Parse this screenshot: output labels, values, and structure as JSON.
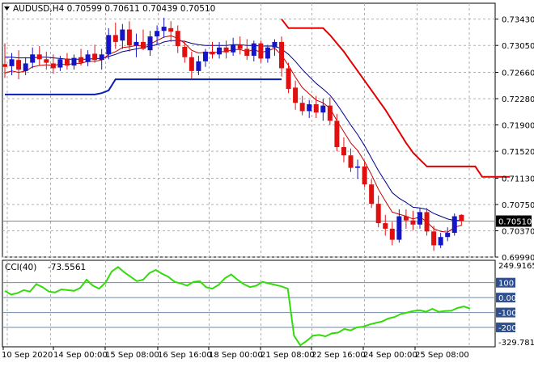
{
  "chart_data": [
    {
      "type": "candlestick",
      "symbol_line": "AUDUSD,H4  0.70599 0.70611 0.70439 0.70510",
      "ylim": [
        0.6999,
        0.7366
      ],
      "price_ticks": [
        "0.73430",
        "0.73050",
        "0.72660",
        "0.72280",
        "0.71900",
        "0.71520",
        "0.71130",
        "0.70750",
        "0.70370",
        "0.69990"
      ],
      "current_price": 0.7051,
      "current_price_label": "0.70510",
      "colors": {
        "bull": "#1515c8",
        "bear": "#e01010",
        "ma_fast": "#c80000",
        "ma_slow": "#00008b",
        "envelope": "#e00000",
        "support": "#0a1eb4",
        "grid": "#b0b0b0",
        "current_line": "#6e8aa6"
      },
      "candles": [
        {
          "o": 0.7278,
          "h": 0.7308,
          "l": 0.7258,
          "c": 0.7274
        },
        {
          "o": 0.7275,
          "h": 0.7294,
          "l": 0.7262,
          "c": 0.7285
        },
        {
          "o": 0.7284,
          "h": 0.7298,
          "l": 0.7256,
          "c": 0.727
        },
        {
          "o": 0.7268,
          "h": 0.7288,
          "l": 0.7262,
          "c": 0.7279
        },
        {
          "o": 0.728,
          "h": 0.7302,
          "l": 0.7272,
          "c": 0.7292
        },
        {
          "o": 0.7292,
          "h": 0.7304,
          "l": 0.7276,
          "c": 0.7285
        },
        {
          "o": 0.7285,
          "h": 0.7296,
          "l": 0.727,
          "c": 0.728
        },
        {
          "o": 0.7279,
          "h": 0.7292,
          "l": 0.7264,
          "c": 0.7272
        },
        {
          "o": 0.7273,
          "h": 0.729,
          "l": 0.7268,
          "c": 0.7285
        },
        {
          "o": 0.7286,
          "h": 0.7294,
          "l": 0.727,
          "c": 0.7276
        },
        {
          "o": 0.7276,
          "h": 0.7292,
          "l": 0.727,
          "c": 0.7287
        },
        {
          "o": 0.7288,
          "h": 0.73,
          "l": 0.7276,
          "c": 0.728
        },
        {
          "o": 0.7281,
          "h": 0.7298,
          "l": 0.7275,
          "c": 0.7292
        },
        {
          "o": 0.7293,
          "h": 0.7306,
          "l": 0.728,
          "c": 0.7284
        },
        {
          "o": 0.7284,
          "h": 0.73,
          "l": 0.727,
          "c": 0.7292
        },
        {
          "o": 0.7292,
          "h": 0.733,
          "l": 0.7285,
          "c": 0.732
        },
        {
          "o": 0.732,
          "h": 0.7338,
          "l": 0.73,
          "c": 0.731
        },
        {
          "o": 0.7312,
          "h": 0.7336,
          "l": 0.73,
          "c": 0.7328
        },
        {
          "o": 0.7328,
          "h": 0.734,
          "l": 0.7296,
          "c": 0.7305
        },
        {
          "o": 0.7305,
          "h": 0.7322,
          "l": 0.7288,
          "c": 0.731
        },
        {
          "o": 0.731,
          "h": 0.7328,
          "l": 0.7298,
          "c": 0.73
        },
        {
          "o": 0.7298,
          "h": 0.7326,
          "l": 0.729,
          "c": 0.7318
        },
        {
          "o": 0.7318,
          "h": 0.7334,
          "l": 0.7306,
          "c": 0.7326
        },
        {
          "o": 0.7326,
          "h": 0.7345,
          "l": 0.7316,
          "c": 0.7332
        },
        {
          "o": 0.733,
          "h": 0.734,
          "l": 0.731,
          "c": 0.7325
        },
        {
          "o": 0.7326,
          "h": 0.7334,
          "l": 0.7294,
          "c": 0.7304
        },
        {
          "o": 0.7303,
          "h": 0.7312,
          "l": 0.728,
          "c": 0.7288
        },
        {
          "o": 0.7288,
          "h": 0.7296,
          "l": 0.7256,
          "c": 0.7268
        },
        {
          "o": 0.7268,
          "h": 0.729,
          "l": 0.7262,
          "c": 0.7282
        },
        {
          "o": 0.7282,
          "h": 0.73,
          "l": 0.7274,
          "c": 0.7296
        },
        {
          "o": 0.7296,
          "h": 0.731,
          "l": 0.7286,
          "c": 0.7292
        },
        {
          "o": 0.7292,
          "h": 0.731,
          "l": 0.7286,
          "c": 0.7302
        },
        {
          "o": 0.7302,
          "h": 0.7312,
          "l": 0.7286,
          "c": 0.7295
        },
        {
          "o": 0.7295,
          "h": 0.7316,
          "l": 0.729,
          "c": 0.7306
        },
        {
          "o": 0.7306,
          "h": 0.7318,
          "l": 0.7292,
          "c": 0.73
        },
        {
          "o": 0.73,
          "h": 0.7314,
          "l": 0.7284,
          "c": 0.729
        },
        {
          "o": 0.729,
          "h": 0.7312,
          "l": 0.7282,
          "c": 0.7308
        },
        {
          "o": 0.7308,
          "h": 0.7312,
          "l": 0.728,
          "c": 0.7286
        },
        {
          "o": 0.7286,
          "h": 0.7306,
          "l": 0.728,
          "c": 0.7302
        },
        {
          "o": 0.7302,
          "h": 0.7314,
          "l": 0.729,
          "c": 0.731
        },
        {
          "o": 0.731,
          "h": 0.7318,
          "l": 0.726,
          "c": 0.7272
        },
        {
          "o": 0.7272,
          "h": 0.728,
          "l": 0.7236,
          "c": 0.7242
        },
        {
          "o": 0.7244,
          "h": 0.7254,
          "l": 0.7212,
          "c": 0.7222
        },
        {
          "o": 0.7222,
          "h": 0.7232,
          "l": 0.7204,
          "c": 0.721
        },
        {
          "o": 0.721,
          "h": 0.7226,
          "l": 0.72,
          "c": 0.722
        },
        {
          "o": 0.722,
          "h": 0.7232,
          "l": 0.72,
          "c": 0.7208
        },
        {
          "o": 0.7208,
          "h": 0.7228,
          "l": 0.7196,
          "c": 0.7218
        },
        {
          "o": 0.7218,
          "h": 0.723,
          "l": 0.719,
          "c": 0.7196
        },
        {
          "o": 0.7196,
          "h": 0.7206,
          "l": 0.7152,
          "c": 0.7158
        },
        {
          "o": 0.7158,
          "h": 0.7172,
          "l": 0.7136,
          "c": 0.7146
        },
        {
          "o": 0.7146,
          "h": 0.7156,
          "l": 0.7122,
          "c": 0.7128
        },
        {
          "o": 0.7128,
          "h": 0.714,
          "l": 0.7112,
          "c": 0.713
        },
        {
          "o": 0.713,
          "h": 0.7138,
          "l": 0.71,
          "c": 0.7104
        },
        {
          "o": 0.7104,
          "h": 0.7112,
          "l": 0.707,
          "c": 0.7076
        },
        {
          "o": 0.7076,
          "h": 0.7088,
          "l": 0.7042,
          "c": 0.7048
        },
        {
          "o": 0.7048,
          "h": 0.706,
          "l": 0.703,
          "c": 0.704
        },
        {
          "o": 0.704,
          "h": 0.705,
          "l": 0.7016,
          "c": 0.7024
        },
        {
          "o": 0.7024,
          "h": 0.7068,
          "l": 0.702,
          "c": 0.7058
        },
        {
          "o": 0.7058,
          "h": 0.7068,
          "l": 0.704,
          "c": 0.7052
        },
        {
          "o": 0.7052,
          "h": 0.7066,
          "l": 0.7038,
          "c": 0.7046
        },
        {
          "o": 0.7046,
          "h": 0.707,
          "l": 0.704,
          "c": 0.7064
        },
        {
          "o": 0.7064,
          "h": 0.707,
          "l": 0.703,
          "c": 0.7036
        },
        {
          "o": 0.7036,
          "h": 0.7044,
          "l": 0.7008,
          "c": 0.7016
        },
        {
          "o": 0.7016,
          "h": 0.7034,
          "l": 0.7012,
          "c": 0.7028
        },
        {
          "o": 0.7028,
          "h": 0.7042,
          "l": 0.7022,
          "c": 0.7034
        },
        {
          "o": 0.7034,
          "h": 0.7062,
          "l": 0.703,
          "c": 0.7058
        },
        {
          "o": 0.706,
          "h": 0.7061,
          "l": 0.7044,
          "c": 0.7051
        }
      ],
      "ma_fast": [
        0.7265,
        0.7268,
        0.7266,
        0.7268,
        0.7274,
        0.7276,
        0.7277,
        0.7276,
        0.7278,
        0.7277,
        0.7279,
        0.7279,
        0.7282,
        0.7282,
        0.7284,
        0.7292,
        0.7296,
        0.7302,
        0.7303,
        0.7305,
        0.7304,
        0.7307,
        0.7312,
        0.7317,
        0.7319,
        0.7315,
        0.7308,
        0.7298,
        0.7294,
        0.7295,
        0.7294,
        0.7296,
        0.7296,
        0.7299,
        0.7299,
        0.7296,
        0.7299,
        0.7295,
        0.7297,
        0.7301,
        0.7291,
        0.7276,
        0.7259,
        0.7244,
        0.7235,
        0.7226,
        0.7222,
        0.7214,
        0.7196,
        0.718,
        0.7164,
        0.7153,
        0.7137,
        0.7118,
        0.7097,
        0.708,
        0.7064,
        0.7061,
        0.7058,
        0.7054,
        0.7057,
        0.705,
        0.704,
        0.7036,
        0.7035,
        0.7042,
        0.7045
      ],
      "ma_slow": [
        0.7288,
        0.7288,
        0.7287,
        0.7287,
        0.7287,
        0.7288,
        0.7288,
        0.7287,
        0.7286,
        0.7285,
        0.7285,
        0.7285,
        0.7285,
        0.7286,
        0.7286,
        0.7289,
        0.7292,
        0.7296,
        0.7298,
        0.73,
        0.7302,
        0.7304,
        0.7306,
        0.731,
        0.7312,
        0.7312,
        0.7311,
        0.7308,
        0.7306,
        0.7305,
        0.7305,
        0.7305,
        0.7305,
        0.7306,
        0.7306,
        0.7305,
        0.7305,
        0.7304,
        0.7304,
        0.7304,
        0.73,
        0.7292,
        0.7282,
        0.727,
        0.726,
        0.725,
        0.7242,
        0.7233,
        0.722,
        0.7205,
        0.719,
        0.7176,
        0.716,
        0.7142,
        0.7124,
        0.7108,
        0.7092,
        0.7084,
        0.7078,
        0.7071,
        0.707,
        0.7068,
        0.7062,
        0.7058,
        0.7054,
        0.7052,
        0.7052
      ],
      "support_line": [
        0.7234,
        0.7234,
        0.7234,
        0.7234,
        0.7234,
        0.7234,
        0.7234,
        0.7234,
        0.7234,
        0.7234,
        0.7234,
        0.7234,
        0.7234,
        0.7234,
        0.7236,
        0.724,
        0.7256,
        0.7256,
        0.7256,
        0.7256,
        0.7256,
        0.7256,
        0.7256,
        0.7256,
        0.7256,
        0.7256,
        0.7256,
        0.7256,
        0.7256,
        0.7256,
        0.7256,
        0.7256,
        0.7256,
        0.7256,
        0.7256,
        0.7256,
        0.7256,
        0.7256,
        0.7256,
        0.7256,
        0.7256
      ],
      "envelope_start": 40,
      "envelope": [
        0.7343,
        0.733,
        0.733,
        0.733,
        0.733,
        0.733,
        0.733,
        0.732,
        0.7308,
        0.7296,
        0.7282,
        0.7268,
        0.7254,
        0.724,
        0.7226,
        0.7212,
        0.7196,
        0.718,
        0.7164,
        0.715,
        0.714,
        0.713,
        0.713,
        0.713,
        0.713,
        0.713,
        0.713,
        0.713,
        0.713,
        0.7115,
        0.7115,
        0.7115,
        0.7115,
        0.7115
      ]
    },
    {
      "type": "line",
      "name_label": "CCI(40)",
      "value_label": "-73.5561",
      "ylim": [
        -329.7812,
        249.9165
      ],
      "max_label": "249.9165",
      "min_label": "-329.7812",
      "levels": [
        {
          "value": 100,
          "label": "100"
        },
        {
          "value": 0,
          "label": "0.00"
        },
        {
          "value": -100,
          "label": "-100"
        },
        {
          "value": -200,
          "label": "-200"
        }
      ],
      "colors": {
        "line": "#32dc0a",
        "level_label_bg": "#2f4f8f",
        "level_line": "#6e8aa6"
      },
      "values": [
        45,
        20,
        30,
        50,
        40,
        90,
        70,
        40,
        35,
        55,
        50,
        45,
        65,
        120,
        80,
        60,
        100,
        175,
        205,
        170,
        140,
        110,
        120,
        165,
        185,
        160,
        140,
        105,
        95,
        80,
        105,
        110,
        70,
        60,
        85,
        130,
        155,
        120,
        90,
        70,
        80,
        105,
        95,
        85,
        75,
        60,
        -255,
        -320,
        -290,
        -255,
        -250,
        -260,
        -240,
        -235,
        -210,
        -220,
        -200,
        -195,
        -180,
        -170,
        -160,
        -140,
        -130,
        -110,
        -100,
        -90,
        -85,
        -95,
        -75,
        -95,
        -90,
        -88,
        -70,
        -60,
        -73
      ]
    }
  ],
  "x_labels": [
    "10 Sep 2020",
    "14 Sep 00:00",
    "15 Sep 08:00",
    "16 Sep 16:00",
    "18 Sep 00:00",
    "21 Sep 08:00",
    "22 Sep 16:00",
    "24 Sep 00:00",
    "25 Sep 08:00"
  ]
}
